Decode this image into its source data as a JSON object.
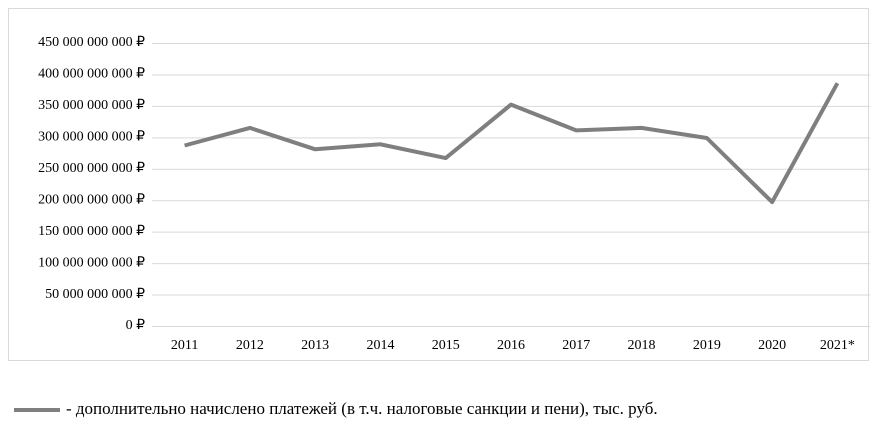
{
  "chart_data": {
    "type": "line",
    "categories": [
      "2011",
      "2012",
      "2013",
      "2014",
      "2015",
      "2016",
      "2017",
      "2018",
      "2019",
      "2020",
      "2021*"
    ],
    "series": [
      {
        "name": "- дополнительно начислено платежей (в т.ч. налоговые санкции и пени), тыс. руб.",
        "color": "#7f7f7f",
        "values": [
          287000000000,
          315000000000,
          281000000000,
          289000000000,
          267000000000,
          352000000000,
          311000000000,
          315000000000,
          299000000000,
          197000000000,
          386000000000
        ]
      }
    ],
    "ylim": [
      0,
      450000000000
    ],
    "yticks": [
      {
        "value": 0,
        "label": "0 ₽"
      },
      {
        "value": 50000000000,
        "label": "50 000 000 000 ₽"
      },
      {
        "value": 100000000000,
        "label": "100 000 000 000 ₽"
      },
      {
        "value": 150000000000,
        "label": "150 000 000 000 ₽"
      },
      {
        "value": 200000000000,
        "label": "200 000 000 000 ₽"
      },
      {
        "value": 250000000000,
        "label": "250 000 000 000 ₽"
      },
      {
        "value": 300000000000,
        "label": "300 000 000 000 ₽"
      },
      {
        "value": 350000000000,
        "label": "350 000 000 000 ₽"
      },
      {
        "value": 400000000000,
        "label": "400 000 000 000 ₽"
      },
      {
        "value": 450000000000,
        "label": "450 000 000 000 ₽"
      }
    ],
    "grid": true,
    "legend": "bottom"
  }
}
